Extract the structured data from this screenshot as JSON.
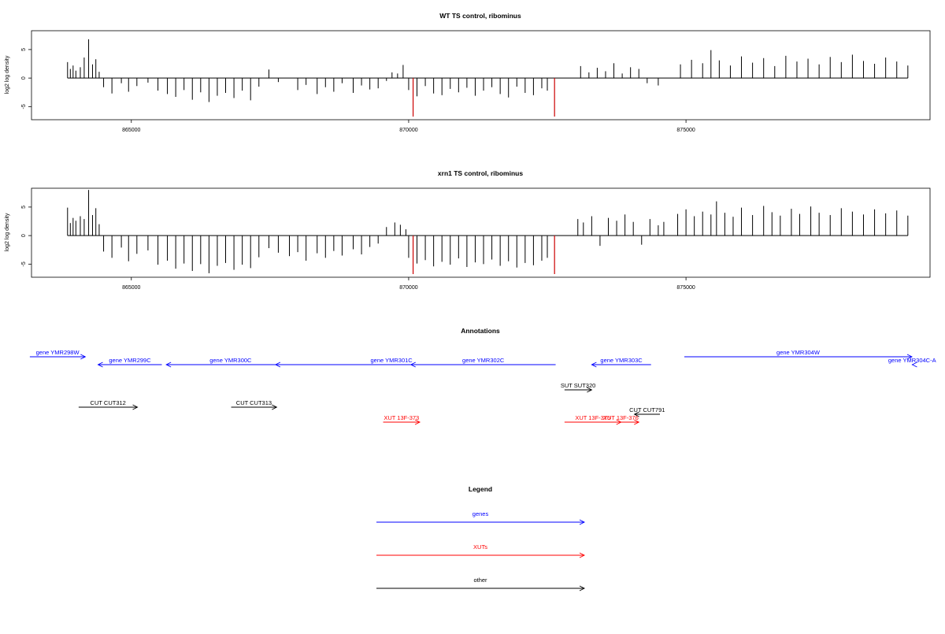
{
  "chart_data": [
    {
      "type": "bar",
      "title": "WT TS control, ribominus",
      "xlabel": "",
      "ylabel": "log2 log density",
      "xlim": [
        863200,
        879400
      ],
      "ylim": [
        -7.3,
        8.3
      ],
      "xticks": [
        865000,
        870000,
        875000
      ],
      "yticks": [
        -5,
        0,
        5
      ],
      "grid": false,
      "highlight_color": "#cc0000",
      "highlights": [
        870080,
        872630
      ],
      "series": [
        {
          "values": [
            [
              863850,
              2.8
            ],
            [
              863900,
              1.6
            ],
            [
              863950,
              2.2
            ],
            [
              864000,
              1.3
            ],
            [
              864080,
              1.9
            ],
            [
              864150,
              3.6
            ],
            [
              864230,
              6.8
            ],
            [
              864300,
              2.4
            ],
            [
              864360,
              3.3
            ],
            [
              864420,
              1.1
            ],
            [
              864500,
              -1.6
            ],
            [
              864650,
              -2.7
            ],
            [
              864820,
              -0.9
            ],
            [
              864950,
              -2.4
            ],
            [
              865100,
              -1.4
            ],
            [
              865300,
              -0.8
            ],
            [
              865480,
              -2.2
            ],
            [
              865650,
              -2.8
            ],
            [
              865800,
              -3.3
            ],
            [
              865950,
              -2.1
            ],
            [
              866100,
              -3.8
            ],
            [
              866250,
              -2.5
            ],
            [
              866400,
              -4.2
            ],
            [
              866550,
              -3.1
            ],
            [
              866700,
              -2.6
            ],
            [
              866850,
              -3.5
            ],
            [
              867000,
              -2.2
            ],
            [
              867150,
              -3.9
            ],
            [
              867300,
              -1.5
            ],
            [
              867480,
              1.5
            ],
            [
              867650,
              -0.7
            ],
            [
              868000,
              -2.1
            ],
            [
              868150,
              -1.2
            ],
            [
              868350,
              -2.8
            ],
            [
              868500,
              -1.6
            ],
            [
              868650,
              -2.4
            ],
            [
              868800,
              -0.9
            ],
            [
              869000,
              -2.6
            ],
            [
              869150,
              -1.3
            ],
            [
              869300,
              -2.0
            ],
            [
              869450,
              -1.8
            ],
            [
              869600,
              -0.5
            ],
            [
              869700,
              1.0
            ],
            [
              869800,
              0.8
            ],
            [
              869900,
              2.3
            ],
            [
              870000,
              -2.1
            ],
            [
              870150,
              -3.2
            ],
            [
              870300,
              -1.4
            ],
            [
              870450,
              -2.7
            ],
            [
              870600,
              -3.0
            ],
            [
              870750,
              -1.9
            ],
            [
              870900,
              -2.5
            ],
            [
              871050,
              -1.7
            ],
            [
              871200,
              -3.1
            ],
            [
              871350,
              -2.2
            ],
            [
              871500,
              -1.6
            ],
            [
              871650,
              -2.8
            ],
            [
              871800,
              -3.4
            ],
            [
              871950,
              -1.5
            ],
            [
              872100,
              -2.6
            ],
            [
              872250,
              -3.0
            ],
            [
              872400,
              -1.8
            ],
            [
              872500,
              -2.2
            ],
            [
              873100,
              2.1
            ],
            [
              873250,
              1.0
            ],
            [
              873400,
              1.8
            ],
            [
              873550,
              1.2
            ],
            [
              873700,
              2.6
            ],
            [
              873850,
              0.8
            ],
            [
              874000,
              1.9
            ],
            [
              874150,
              1.6
            ],
            [
              874300,
              -0.9
            ],
            [
              874500,
              -1.3
            ],
            [
              874900,
              2.4
            ],
            [
              875100,
              3.2
            ],
            [
              875300,
              2.6
            ],
            [
              875450,
              4.9
            ],
            [
              875600,
              3.1
            ],
            [
              875800,
              2.2
            ],
            [
              876000,
              3.8
            ],
            [
              876200,
              2.7
            ],
            [
              876400,
              3.5
            ],
            [
              876600,
              2.1
            ],
            [
              876800,
              3.9
            ],
            [
              877000,
              2.9
            ],
            [
              877200,
              3.4
            ],
            [
              877400,
              2.4
            ],
            [
              877600,
              3.7
            ],
            [
              877800,
              2.8
            ],
            [
              878000,
              4.1
            ],
            [
              878200,
              3.0
            ],
            [
              878400,
              2.5
            ],
            [
              878600,
              3.6
            ],
            [
              878800,
              2.9
            ],
            [
              879000,
              2.2
            ]
          ]
        }
      ]
    },
    {
      "type": "bar",
      "title": "xrn1 TS control, ribominus",
      "xlabel": "",
      "ylabel": "log2 log density",
      "xlim": [
        863200,
        879400
      ],
      "ylim": [
        -7.3,
        8.3
      ],
      "xticks": [
        865000,
        870000,
        875000
      ],
      "yticks": [
        -5,
        0,
        5
      ],
      "grid": false,
      "highlight_color": "#cc0000",
      "highlights": [
        870080,
        872630
      ],
      "series": [
        {
          "values": [
            [
              863850,
              4.9
            ],
            [
              863900,
              2.2
            ],
            [
              863950,
              3.1
            ],
            [
              864000,
              2.6
            ],
            [
              864080,
              3.4
            ],
            [
              864150,
              2.9
            ],
            [
              864230,
              8.0
            ],
            [
              864300,
              3.6
            ],
            [
              864360,
              4.8
            ],
            [
              864420,
              2.0
            ],
            [
              864500,
              -2.8
            ],
            [
              864650,
              -3.9
            ],
            [
              864820,
              -2.1
            ],
            [
              864950,
              -4.5
            ],
            [
              865100,
              -3.2
            ],
            [
              865300,
              -2.6
            ],
            [
              865480,
              -5.1
            ],
            [
              865650,
              -4.4
            ],
            [
              865800,
              -5.8
            ],
            [
              865950,
              -4.9
            ],
            [
              866100,
              -6.2
            ],
            [
              866250,
              -5.0
            ],
            [
              866400,
              -6.6
            ],
            [
              866550,
              -5.3
            ],
            [
              866700,
              -4.8
            ],
            [
              866850,
              -6.0
            ],
            [
              867000,
              -5.1
            ],
            [
              867150,
              -5.7
            ],
            [
              867300,
              -3.8
            ],
            [
              867480,
              -2.2
            ],
            [
              867650,
              -3.0
            ],
            [
              867850,
              -3.6
            ],
            [
              868000,
              -2.9
            ],
            [
              868150,
              -4.4
            ],
            [
              868350,
              -3.1
            ],
            [
              868500,
              -3.9
            ],
            [
              868650,
              -2.7
            ],
            [
              868800,
              -3.5
            ],
            [
              869000,
              -2.4
            ],
            [
              869150,
              -3.3
            ],
            [
              869300,
              -2.0
            ],
            [
              869450,
              -1.4
            ],
            [
              869600,
              1.5
            ],
            [
              869750,
              2.3
            ],
            [
              869850,
              1.9
            ],
            [
              869950,
              1.1
            ],
            [
              870000,
              -3.9
            ],
            [
              870150,
              -4.9
            ],
            [
              870300,
              -4.3
            ],
            [
              870450,
              -5.4
            ],
            [
              870600,
              -4.6
            ],
            [
              870750,
              -5.1
            ],
            [
              870900,
              -4.0
            ],
            [
              871050,
              -5.5
            ],
            [
              871200,
              -4.7
            ],
            [
              871350,
              -5.0
            ],
            [
              871500,
              -4.2
            ],
            [
              871650,
              -5.3
            ],
            [
              871800,
              -4.5
            ],
            [
              871950,
              -5.6
            ],
            [
              872100,
              -4.8
            ],
            [
              872250,
              -5.2
            ],
            [
              872400,
              -4.4
            ],
            [
              872500,
              -3.9
            ],
            [
              873050,
              2.9
            ],
            [
              873150,
              2.3
            ],
            [
              873300,
              3.4
            ],
            [
              873450,
              -1.8
            ],
            [
              873600,
              3.1
            ],
            [
              873750,
              2.6
            ],
            [
              873900,
              3.7
            ],
            [
              874050,
              2.4
            ],
            [
              874200,
              -1.6
            ],
            [
              874350,
              2.9
            ],
            [
              874500,
              1.8
            ],
            [
              874600,
              2.4
            ],
            [
              874850,
              3.8
            ],
            [
              875000,
              4.6
            ],
            [
              875150,
              3.4
            ],
            [
              875300,
              4.2
            ],
            [
              875450,
              3.7
            ],
            [
              875550,
              6.0
            ],
            [
              875700,
              4.0
            ],
            [
              875850,
              3.3
            ],
            [
              876000,
              4.9
            ],
            [
              876200,
              3.6
            ],
            [
              876400,
              5.2
            ],
            [
              876550,
              4.1
            ],
            [
              876700,
              3.5
            ],
            [
              876900,
              4.7
            ],
            [
              877050,
              3.8
            ],
            [
              877250,
              5.1
            ],
            [
              877400,
              4.0
            ],
            [
              877600,
              3.6
            ],
            [
              877800,
              4.8
            ],
            [
              878000,
              4.2
            ],
            [
              878200,
              3.7
            ],
            [
              878400,
              4.6
            ],
            [
              878600,
              3.9
            ],
            [
              878800,
              4.4
            ],
            [
              879000,
              3.5
            ]
          ]
        }
      ]
    }
  ],
  "annotations": {
    "title": "Annotations",
    "colors": {
      "gene": "#0000ff",
      "xut": "#ff0000",
      "other": "#000000"
    },
    "features": [
      {
        "label": "gene YMR298W",
        "kind": "gene",
        "dir": "+",
        "start": 863170,
        "end": 864170,
        "row": 0
      },
      {
        "label": "gene YMR299C",
        "kind": "gene",
        "dir": "-",
        "start": 864400,
        "end": 865550,
        "row": 1
      },
      {
        "label": "gene YMR300C",
        "kind": "gene",
        "dir": "-",
        "start": 865630,
        "end": 867950,
        "row": 1
      },
      {
        "label": "gene YMR301C",
        "kind": "gene",
        "dir": "-",
        "start": 867600,
        "end": 871780,
        "row": 1
      },
      {
        "label": "gene YMR302C",
        "kind": "gene",
        "dir": "-",
        "start": 870040,
        "end": 872650,
        "row": 1
      },
      {
        "label": "gene YMR303C",
        "kind": "gene",
        "dir": "-",
        "start": 873300,
        "end": 874370,
        "row": 1
      },
      {
        "label": "gene YMR304W",
        "kind": "gene",
        "dir": "+",
        "start": 874970,
        "end": 879150,
        "row": 0
      },
      {
        "label": "gene YMR304C-A",
        "kind": "gene",
        "dir": "-",
        "start": 879080,
        "end": 879500,
        "row": 1
      },
      {
        "label": "SUT SUT320",
        "kind": "other",
        "dir": "+",
        "start": 872810,
        "end": 873300,
        "row": 2
      },
      {
        "label": "CUT CUT312",
        "kind": "other",
        "dir": "+",
        "start": 864050,
        "end": 865110,
        "row": 3
      },
      {
        "label": "CUT CUT313",
        "kind": "other",
        "dir": "+",
        "start": 866800,
        "end": 867620,
        "row": 3
      },
      {
        "label": "CUT CUT791",
        "kind": "other",
        "dir": "-",
        "start": 874070,
        "end": 874530,
        "row": 4
      },
      {
        "label": "XUT 13F-373",
        "kind": "xut",
        "dir": "+",
        "start": 869540,
        "end": 870200,
        "row": 5
      },
      {
        "label": "XUT 13F-375",
        "kind": "xut",
        "dir": "+",
        "start": 872810,
        "end": 873830,
        "row": 5
      },
      {
        "label": "XUT 13F-376",
        "kind": "xut",
        "dir": "+",
        "start": 873500,
        "end": 874150,
        "row": 5
      }
    ]
  },
  "legend": {
    "title": "Legend",
    "items": [
      {
        "label": "genes",
        "color": "#0000ff"
      },
      {
        "label": "XUTs",
        "color": "#ff0000"
      },
      {
        "label": "other",
        "color": "#000000"
      }
    ]
  }
}
